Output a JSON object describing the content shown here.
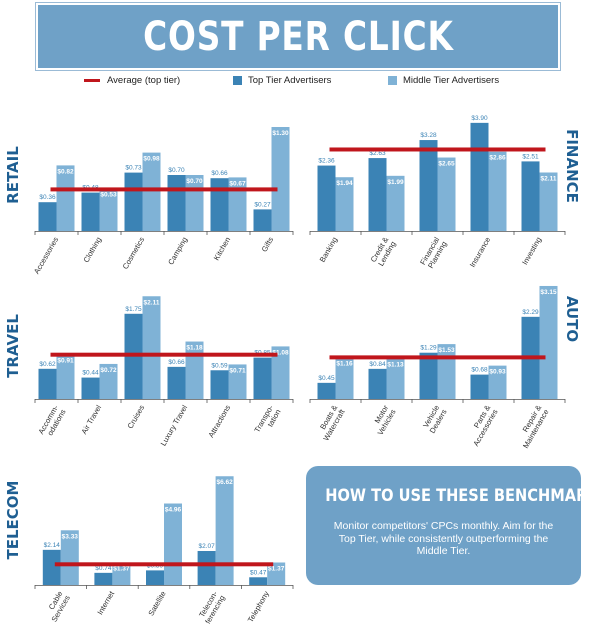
{
  "title": "COST PER CLICK",
  "legend": {
    "average": "Average (top tier)",
    "top": "Top Tier Advertisers",
    "middle": "Middle Tier Advertisers"
  },
  "colors": {
    "top": "#3b83b5",
    "middle": "#7fb2d6",
    "average": "#c0161c",
    "accent": "#1f5f92"
  },
  "info": {
    "title": "HOW TO USE THESE BENCHMARKS",
    "body": "Monitor competitors' CPCs monthly. Aim for the Top Tier, while consistently outperforming the Middle Tier."
  },
  "chart_data": [
    {
      "type": "bar",
      "title": "RETAIL",
      "categories": [
        "Accessories",
        "Clothing",
        "Cosmetics",
        "Camping",
        "Kitchen",
        "Gifts"
      ],
      "series": [
        {
          "name": "Top Tier Advertisers",
          "values": [
            0.36,
            0.48,
            0.73,
            0.7,
            0.66,
            0.27
          ],
          "labels": [
            "$0.36",
            "$0.48",
            "$0.73",
            "$0.70",
            "$0.66",
            "$0.27"
          ]
        },
        {
          "name": "Middle Tier Advertisers",
          "values": [
            0.82,
            0.53,
            0.98,
            0.7,
            0.67,
            1.3
          ],
          "labels": [
            "$0.82",
            "$0.53",
            "$0.98",
            "$0.70",
            "$0.67",
            "$1.30"
          ]
        }
      ],
      "average": 0.52,
      "ylim": [
        0,
        1.4
      ]
    },
    {
      "type": "bar",
      "title": "FINANCE",
      "categories": [
        "Banking",
        "Credit & Lending",
        "Financial Planning",
        "Insurance",
        "Investing"
      ],
      "series": [
        {
          "name": "Top Tier Advertisers",
          "values": [
            2.36,
            2.63,
            3.28,
            3.9,
            2.51
          ],
          "labels": [
            "$2.36",
            "$2.63",
            "$3.28",
            "$3.90",
            "$2.51"
          ]
        },
        {
          "name": "Middle Tier Advertisers",
          "values": [
            1.94,
            1.99,
            2.65,
            2.86,
            2.11
          ],
          "labels": [
            "$1.94",
            "$1.99",
            "$2.65",
            "$2.86",
            "$2.11"
          ]
        }
      ],
      "average": 2.94,
      "ylim": [
        0,
        4.4
      ]
    },
    {
      "type": "bar",
      "title": "TRAVEL",
      "categories": [
        "Accomm-odations",
        "Air Travel",
        "Cruises",
        "Luxury Travel",
        "Attractions",
        "Transpo-tation"
      ],
      "series": [
        {
          "name": "Top Tier Advertisers",
          "values": [
            0.62,
            0.44,
            1.75,
            0.66,
            0.59,
            0.85
          ],
          "labels": [
            "$0.62",
            "$0.44",
            "$1.75",
            "$0.66",
            "$0.59",
            "$0.85"
          ]
        },
        {
          "name": "Middle Tier Advertisers",
          "values": [
            0.91,
            0.72,
            2.11,
            1.18,
            0.71,
            1.08
          ],
          "labels": [
            "$0.91",
            "$0.72",
            "$2.11",
            "$1.18",
            "$0.71",
            "$1.08"
          ]
        }
      ],
      "average": 0.91,
      "ylim": [
        0,
        2.3
      ]
    },
    {
      "type": "bar",
      "title": "AUTO",
      "categories": [
        "Boats & Watercraft",
        "Motor Vehicles",
        "Vehicle Dealers",
        "Parts & Accessories",
        "Repair & Maintenance"
      ],
      "series": [
        {
          "name": "Top Tier Advertisers",
          "values": [
            0.45,
            0.84,
            1.29,
            0.68,
            2.29
          ],
          "labels": [
            "$0.45",
            "$0.84",
            "$1.29",
            "$0.68",
            "$2.29"
          ]
        },
        {
          "name": "Middle Tier Advertisers",
          "values": [
            1.16,
            1.13,
            1.53,
            0.93,
            3.15
          ],
          "labels": [
            "$1.16",
            "$1.13",
            "$1.53",
            "$0.93",
            "$3.15"
          ]
        }
      ],
      "average": 1.16,
      "ylim": [
        0,
        3.4
      ]
    },
    {
      "type": "bar",
      "title": "TELECOM",
      "categories": [
        "Cable Services",
        "Internet",
        "Satellite",
        "Telecon-ferencing",
        "Telephony"
      ],
      "series": [
        {
          "name": "Top Tier Advertisers",
          "values": [
            2.14,
            0.74,
            0.89,
            2.07,
            0.47
          ],
          "labels": [
            "$2.14",
            "$0.74",
            "$0.89",
            "$2.07",
            "$0.47"
          ]
        },
        {
          "name": "Middle Tier Advertisers",
          "values": [
            3.33,
            1.37,
            4.96,
            6.62,
            1.37
          ],
          "labels": [
            "$3.33",
            "$1.37",
            "$4.96",
            "$6.62",
            "$1.37"
          ]
        }
      ],
      "average": 1.26,
      "ylim": [
        0,
        7.0
      ]
    }
  ]
}
